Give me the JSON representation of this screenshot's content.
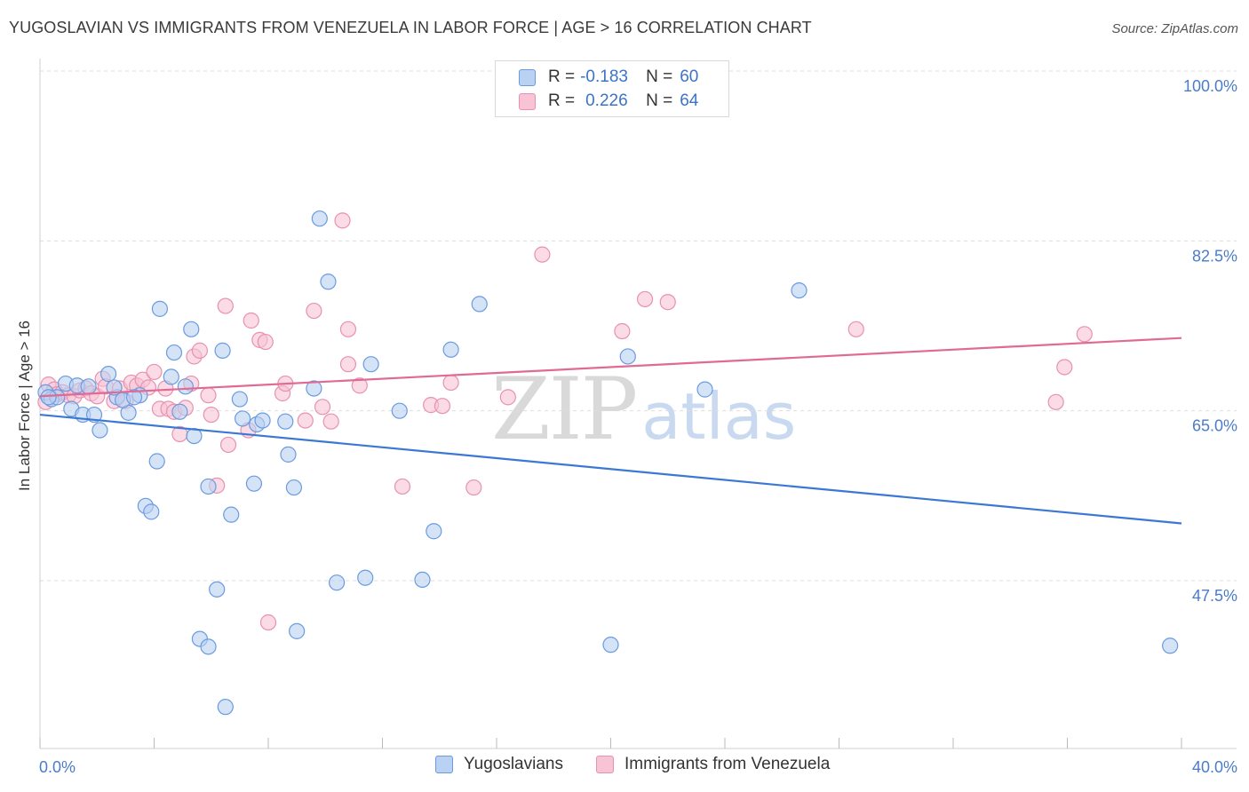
{
  "header": {
    "title": "YUGOSLAVIAN VS IMMIGRANTS FROM VENEZUELA IN LABOR FORCE | AGE > 16 CORRELATION CHART",
    "source": "Source: ZipAtlas.com"
  },
  "watermark": {
    "zip": "ZIP",
    "atlas": "atlas"
  },
  "legend": {
    "rows": [
      {
        "r_label": "R =",
        "r_value": "-0.183",
        "n_label": "N =",
        "n_value": "60"
      },
      {
        "r_label": "R =",
        "r_value": "0.226",
        "n_label": "N =",
        "n_value": "64"
      }
    ]
  },
  "colors": {
    "blue_fill": "#b9d1f2",
    "blue_stroke": "#6a9be0",
    "blue_line": "#3b78d4",
    "pink_fill": "#f7c3d5",
    "pink_stroke": "#e891b0",
    "pink_line": "#e06a93",
    "grid": "#dddddd",
    "tick_text": "#4a7cc9"
  },
  "chart_data": {
    "type": "scatter",
    "title": "YUGOSLAVIAN VS IMMIGRANTS FROM VENEZUELA IN LABOR FORCE | AGE > 16 CORRELATION CHART",
    "xlabel": "",
    "ylabel": "In Labor Force | Age > 16",
    "xlim": [
      0,
      40
    ],
    "ylim": [
      33.5,
      102
    ],
    "x_tick_labels": [
      "0.0%",
      "40.0%"
    ],
    "y_ticks": [
      {
        "value": 100,
        "label": "100.0%"
      },
      {
        "value": 82.5,
        "label": "82.5%"
      },
      {
        "value": 65,
        "label": "65.0%"
      },
      {
        "value": 47.5,
        "label": "47.5%"
      }
    ],
    "grid": true,
    "legend_position": "top-center",
    "series": [
      {
        "name": "Yugoslavians",
        "color": "#6a9be0",
        "trend": {
          "x": [
            0,
            40
          ],
          "y": [
            64.6,
            53.4
          ]
        },
        "points": [
          [
            0.2,
            66.9
          ],
          [
            0.4,
            66.2
          ],
          [
            0.6,
            66.4
          ],
          [
            0.9,
            67.8
          ],
          [
            1.1,
            65.2
          ],
          [
            1.3,
            67.6
          ],
          [
            1.5,
            64.6
          ],
          [
            1.7,
            67.5
          ],
          [
            1.9,
            64.6
          ],
          [
            2.1,
            63.0
          ],
          [
            2.4,
            68.8
          ],
          [
            2.7,
            66.4
          ],
          [
            3.1,
            64.8
          ],
          [
            3.5,
            66.6
          ],
          [
            3.7,
            55.2
          ],
          [
            3.9,
            54.6
          ],
          [
            4.1,
            59.8
          ],
          [
            4.2,
            75.5
          ],
          [
            4.6,
            68.5
          ],
          [
            4.7,
            71.0
          ],
          [
            4.9,
            64.9
          ],
          [
            5.1,
            67.5
          ],
          [
            5.3,
            73.4
          ],
          [
            5.4,
            62.4
          ],
          [
            5.6,
            41.5
          ],
          [
            5.9,
            57.2
          ],
          [
            5.9,
            40.7
          ],
          [
            6.2,
            46.6
          ],
          [
            6.4,
            71.2
          ],
          [
            6.5,
            34.5
          ],
          [
            6.7,
            54.3
          ],
          [
            7.0,
            66.2
          ],
          [
            7.1,
            64.2
          ],
          [
            7.5,
            57.5
          ],
          [
            7.6,
            63.6
          ],
          [
            7.8,
            64.0
          ],
          [
            8.6,
            63.9
          ],
          [
            8.7,
            60.5
          ],
          [
            8.9,
            57.1
          ],
          [
            9.0,
            42.3
          ],
          [
            9.6,
            67.3
          ],
          [
            9.8,
            84.8
          ],
          [
            10.1,
            78.3
          ],
          [
            10.4,
            47.3
          ],
          [
            11.4,
            47.8
          ],
          [
            11.6,
            69.8
          ],
          [
            12.6,
            65.0
          ],
          [
            13.4,
            47.6
          ],
          [
            13.8,
            52.6
          ],
          [
            14.4,
            71.3
          ],
          [
            15.4,
            76.0
          ],
          [
            20.0,
            40.9
          ],
          [
            20.6,
            70.6
          ],
          [
            23.3,
            67.2
          ],
          [
            26.6,
            77.4
          ],
          [
            39.6,
            40.8
          ],
          [
            0.3,
            66.4
          ],
          [
            2.6,
            67.4
          ],
          [
            2.9,
            66.1
          ],
          [
            3.3,
            66.4
          ]
        ]
      },
      {
        "name": "Immigrants from Venezuela",
        "color": "#e891b0",
        "trend": {
          "x": [
            0,
            40
          ],
          "y": [
            66.5,
            72.5
          ]
        },
        "points": [
          [
            0.2,
            65.9
          ],
          [
            0.3,
            67.7
          ],
          [
            0.5,
            67.2
          ],
          [
            0.6,
            66.7
          ],
          [
            0.8,
            66.9
          ],
          [
            1.0,
            66.6
          ],
          [
            1.2,
            66.5
          ],
          [
            1.4,
            67.1
          ],
          [
            1.6,
            67.3
          ],
          [
            1.8,
            66.8
          ],
          [
            2.0,
            66.5
          ],
          [
            2.2,
            68.3
          ],
          [
            2.3,
            67.5
          ],
          [
            2.6,
            66.0
          ],
          [
            2.8,
            67.3
          ],
          [
            3.0,
            66.0
          ],
          [
            3.2,
            67.9
          ],
          [
            3.4,
            67.6
          ],
          [
            3.6,
            68.2
          ],
          [
            3.8,
            67.4
          ],
          [
            4.0,
            69.0
          ],
          [
            4.2,
            65.2
          ],
          [
            4.4,
            67.3
          ],
          [
            4.5,
            65.2
          ],
          [
            4.7,
            64.9
          ],
          [
            4.9,
            62.6
          ],
          [
            5.1,
            65.3
          ],
          [
            5.3,
            67.8
          ],
          [
            5.4,
            70.6
          ],
          [
            5.6,
            71.2
          ],
          [
            5.9,
            66.6
          ],
          [
            6.0,
            64.6
          ],
          [
            6.2,
            57.3
          ],
          [
            6.5,
            75.8
          ],
          [
            6.6,
            61.5
          ],
          [
            7.3,
            63.0
          ],
          [
            7.4,
            74.3
          ],
          [
            7.7,
            72.3
          ],
          [
            7.9,
            72.1
          ],
          [
            8.5,
            66.8
          ],
          [
            8.6,
            67.8
          ],
          [
            9.3,
            64.0
          ],
          [
            9.6,
            75.3
          ],
          [
            9.9,
            65.4
          ],
          [
            10.2,
            63.9
          ],
          [
            10.6,
            84.6
          ],
          [
            10.8,
            73.4
          ],
          [
            10.8,
            69.8
          ],
          [
            11.2,
            67.6
          ],
          [
            12.7,
            57.2
          ],
          [
            13.7,
            65.6
          ],
          [
            14.1,
            65.5
          ],
          [
            14.4,
            67.9
          ],
          [
            15.2,
            57.1
          ],
          [
            16.4,
            66.4
          ],
          [
            17.6,
            81.1
          ],
          [
            20.4,
            73.2
          ],
          [
            21.2,
            76.5
          ],
          [
            22.0,
            76.2
          ],
          [
            28.6,
            73.4
          ],
          [
            35.6,
            65.9
          ],
          [
            35.9,
            69.5
          ],
          [
            36.6,
            72.9
          ],
          [
            8.0,
            43.2
          ]
        ]
      }
    ]
  },
  "bottom_legend": {
    "items": [
      {
        "label": "Yugoslavians"
      },
      {
        "label": "Immigrants from Venezuela"
      }
    ]
  }
}
